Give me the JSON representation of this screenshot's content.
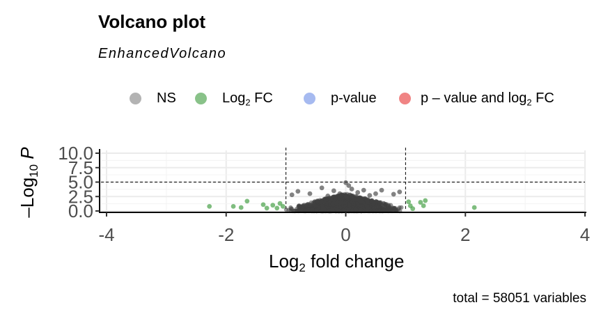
{
  "chart_data": {
    "type": "scatter",
    "title": "Volcano plot",
    "subtitle": "EnhancedVolcano",
    "xlabel": "Log2 fold change",
    "ylabel": "-Log10 P",
    "xlim": [
      -4,
      4
    ],
    "ylim": [
      0,
      10
    ],
    "x_ticks": [
      "-4",
      "-2",
      "0",
      "2",
      "4"
    ],
    "y_ticks": [
      "0.0",
      "2.5",
      "5.0",
      "7.5",
      "10.0"
    ],
    "grid": true,
    "legend_position": "top",
    "fc_cutoff": 1,
    "p_cutoff_line_y": 5,
    "caption": "total = 58051 variables",
    "legend": [
      {
        "label": "NS",
        "color": "#808080"
      },
      {
        "label": "Log2 FC",
        "color": "#3a9a3a"
      },
      {
        "label": "p-value",
        "color": "#6a8ce6"
      },
      {
        "label": "p – value and log2 FC",
        "color": "#e63232"
      }
    ],
    "series": [
      {
        "name": "NS",
        "color": "#404040",
        "points": [
          [
            0.0,
            4.9
          ],
          [
            0.05,
            4.4
          ],
          [
            0.1,
            3.8
          ],
          [
            -0.4,
            4.0
          ],
          [
            -0.2,
            3.5
          ],
          [
            0.3,
            3.6
          ],
          [
            -0.8,
            3.4
          ],
          [
            0.6,
            3.6
          ],
          [
            0.9,
            3.3
          ],
          [
            -0.6,
            3.0
          ],
          [
            0.2,
            3.2
          ],
          [
            -0.1,
            3.0
          ],
          [
            0.5,
            3.0
          ],
          [
            0.8,
            2.9
          ],
          [
            -0.9,
            2.8
          ],
          [
            0.4,
            2.7
          ],
          [
            -0.3,
            2.6
          ],
          [
            0.0,
            2.6
          ]
        ]
      },
      {
        "name": "Log2 FC",
        "color": "#3a9a3a",
        "points": [
          [
            -2.28,
            0.8
          ],
          [
            -1.88,
            0.8
          ],
          [
            -1.65,
            1.7
          ],
          [
            -1.75,
            0.6
          ],
          [
            -1.38,
            1.1
          ],
          [
            -1.32,
            0.5
          ],
          [
            -1.22,
            1.0
          ],
          [
            -1.15,
            0.5
          ],
          [
            -1.1,
            1.3
          ],
          [
            -1.05,
            0.8
          ],
          [
            1.05,
            1.6
          ],
          [
            1.08,
            0.9
          ],
          [
            1.12,
            0.4
          ],
          [
            1.25,
            1.5
          ],
          [
            1.3,
            0.9
          ],
          [
            1.33,
            1.8
          ],
          [
            2.15,
            0.6
          ]
        ]
      }
    ],
    "ns_density": [
      {
        "x_min": -1.0,
        "x_max": 1.0,
        "y_top_center": 3.0,
        "description": "dense cloud of NS points around x=0"
      }
    ]
  }
}
